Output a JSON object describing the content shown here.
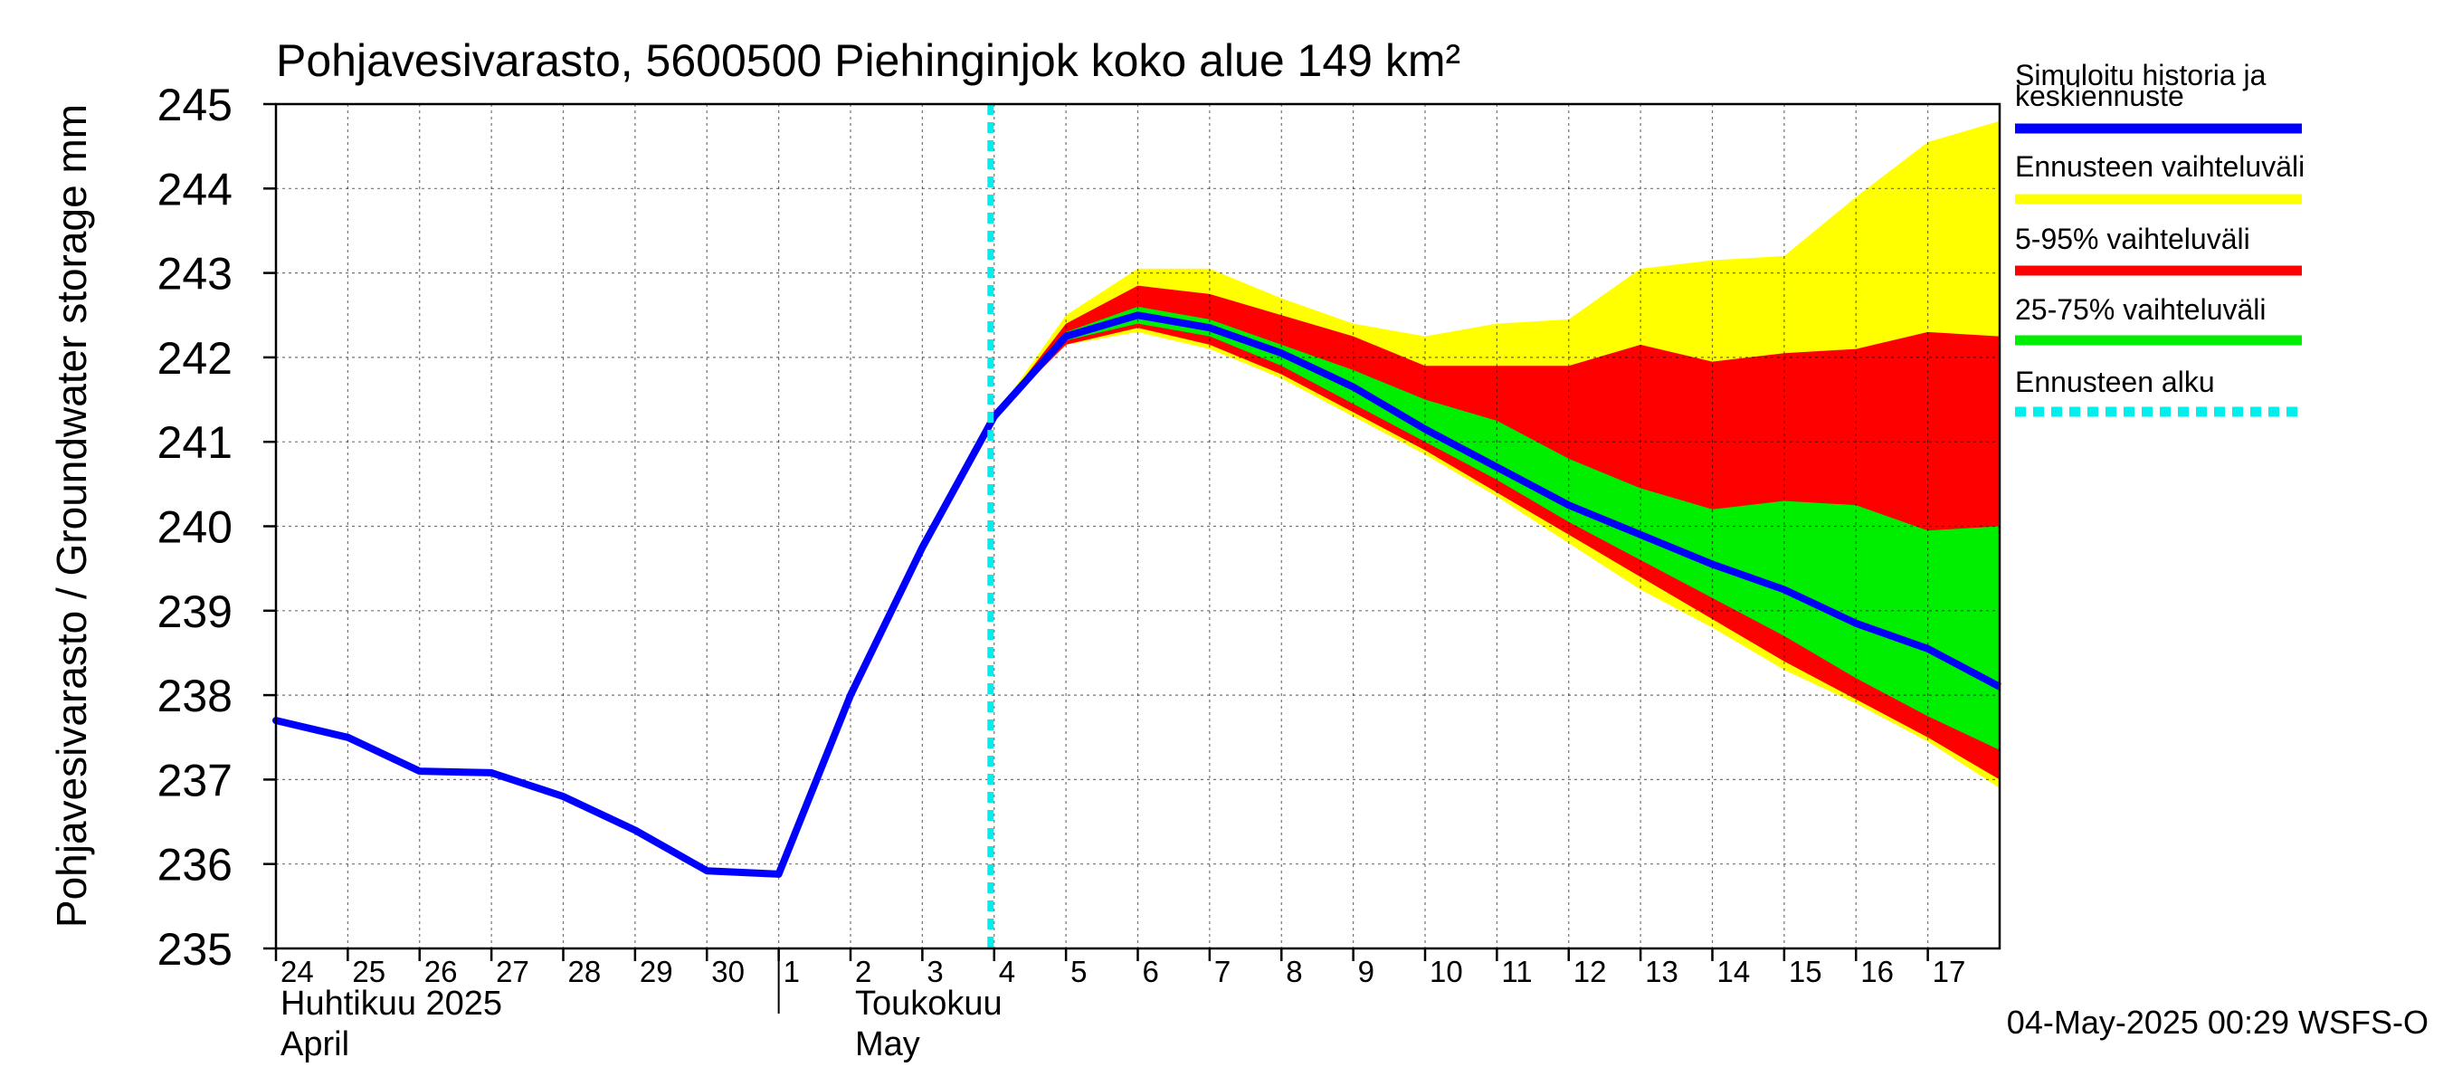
{
  "chart_data": {
    "type": "area",
    "title": "Pohjavesivarasto, 5600500 Piehinginjok koko alue 149 km²",
    "ylabel": "Pohjavesivarasto / Groundwater storage   mm",
    "ylim": [
      235,
      245
    ],
    "yticks": [
      "235",
      "236",
      "237",
      "238",
      "239",
      "240",
      "241",
      "242",
      "243",
      "244",
      "245"
    ],
    "grid": true,
    "xlim": [
      0,
      24
    ],
    "xticks": [
      {
        "label": "24",
        "x": 0
      },
      {
        "label": "25",
        "x": 1
      },
      {
        "label": "26",
        "x": 2
      },
      {
        "label": "27",
        "x": 3
      },
      {
        "label": "28",
        "x": 4
      },
      {
        "label": "29",
        "x": 5
      },
      {
        "label": "30",
        "x": 6
      },
      {
        "label": "1",
        "x": 7
      },
      {
        "label": "2",
        "x": 8
      },
      {
        "label": "3",
        "x": 9
      },
      {
        "label": "4",
        "x": 10
      },
      {
        "label": "5",
        "x": 11
      },
      {
        "label": "6",
        "x": 12
      },
      {
        "label": "7",
        "x": 13
      },
      {
        "label": "8",
        "x": 14
      },
      {
        "label": "9",
        "x": 15
      },
      {
        "label": "10",
        "x": 16
      },
      {
        "label": "11",
        "x": 17
      },
      {
        "label": "12",
        "x": 18
      },
      {
        "label": "13",
        "x": 19
      },
      {
        "label": "14",
        "x": 20
      },
      {
        "label": "15",
        "x": 21
      },
      {
        "label": "16",
        "x": 22
      },
      {
        "label": "17",
        "x": 23
      }
    ],
    "month_labels": [
      {
        "fi": "Huhtikuu  2025",
        "en": "April",
        "x": 0
      },
      {
        "fi": "Toukokuu",
        "en": "May",
        "x": 8
      }
    ],
    "month_divider_x": 7,
    "forecast_start_x": 10,
    "history": {
      "x": [
        0,
        1,
        2,
        3,
        4,
        5,
        6,
        7,
        8,
        9,
        10
      ],
      "y": [
        237.7,
        237.5,
        237.1,
        237.08,
        236.8,
        236.4,
        235.92,
        235.88,
        238.0,
        239.75,
        241.3
      ]
    },
    "forecast_x": [
      10,
      11,
      12,
      13,
      14,
      15,
      16,
      17,
      18,
      19,
      20,
      21,
      22,
      23,
      24
    ],
    "series": [
      {
        "name": "Ennusteen vaihteluväli",
        "type": "band",
        "color": "#ffff00",
        "upper": [
          241.3,
          242.5,
          243.05,
          243.05,
          242.7,
          242.4,
          242.25,
          242.4,
          242.45,
          243.05,
          243.15,
          243.2,
          243.9,
          244.55,
          244.8
        ],
        "lower": [
          241.3,
          242.15,
          242.3,
          242.1,
          241.75,
          241.3,
          240.85,
          240.35,
          239.8,
          239.25,
          238.8,
          238.3,
          237.9,
          237.45,
          236.9
        ]
      },
      {
        "name": "5-95% vaihteluväli",
        "type": "band",
        "color": "#ff0000",
        "upper": [
          241.3,
          242.4,
          242.85,
          242.75,
          242.5,
          242.25,
          241.9,
          241.9,
          241.9,
          242.15,
          241.95,
          242.05,
          242.1,
          242.3,
          242.25
        ],
        "lower": [
          241.3,
          242.15,
          242.35,
          242.15,
          241.8,
          241.35,
          240.9,
          240.4,
          239.9,
          239.4,
          238.9,
          238.4,
          237.95,
          237.5,
          237.0
        ]
      },
      {
        "name": "25-75% vaihteluväli",
        "type": "band",
        "color": "#00ee00",
        "upper": [
          241.3,
          242.3,
          242.6,
          242.45,
          242.15,
          241.85,
          241.5,
          241.25,
          240.8,
          240.45,
          240.2,
          240.3,
          240.25,
          239.95,
          240.0
        ],
        "lower": [
          241.3,
          242.2,
          242.4,
          242.25,
          241.9,
          241.45,
          241.0,
          240.55,
          240.05,
          239.6,
          239.15,
          238.7,
          238.2,
          237.75,
          237.35
        ]
      },
      {
        "name": "Simuloitu historia ja keskiennuste",
        "type": "line",
        "color": "#0000ff",
        "y": [
          241.3,
          242.25,
          242.5,
          242.35,
          242.05,
          241.65,
          241.15,
          240.7,
          240.25,
          239.9,
          239.55,
          239.25,
          238.85,
          238.55,
          238.1
        ]
      }
    ],
    "legend": [
      {
        "label": "Simuloitu historia ja",
        "label2": "keskiennuste",
        "color": "#0000ff",
        "style": "solid"
      },
      {
        "label": "Ennusteen vaihteluväli",
        "color": "#ffff00",
        "style": "solid"
      },
      {
        "label": "5-95% vaihteluväli",
        "color": "#ff0000",
        "style": "solid"
      },
      {
        "label": "25-75% vaihteluväli",
        "color": "#00ee00",
        "style": "solid"
      },
      {
        "label": "Ennusteen alku",
        "color": "#00eeee",
        "style": "dashed"
      }
    ],
    "legend_position": "right",
    "footer": "04-May-2025 00:29 WSFS-O"
  }
}
